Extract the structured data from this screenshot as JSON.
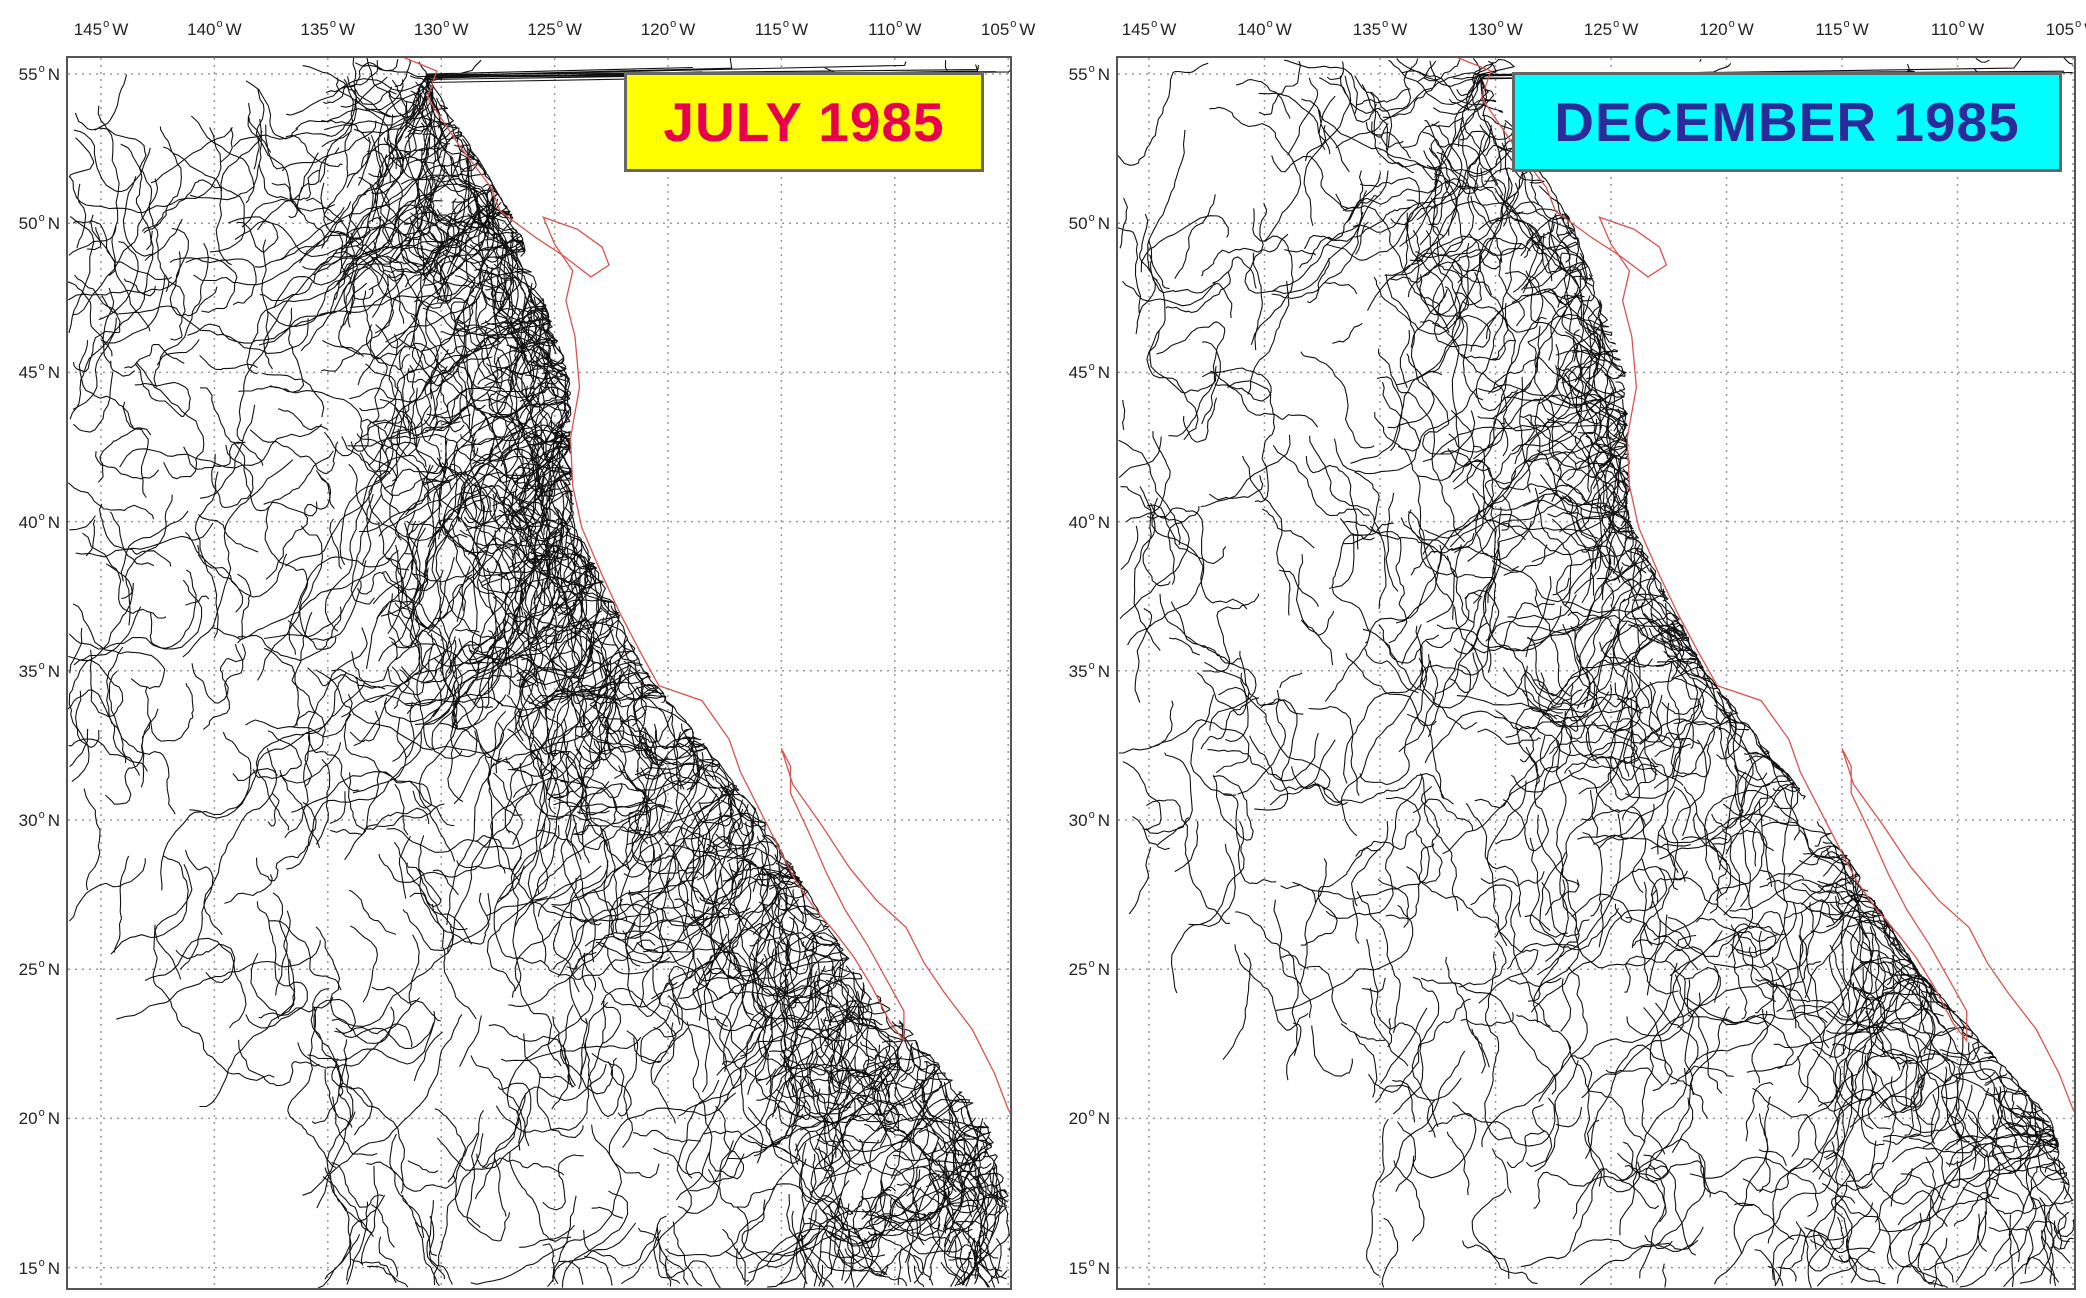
{
  "figure": {
    "description": "Drifter trajectories off the west coast of North America",
    "colors": {
      "trajectories": "#111111",
      "coastline": "#d9534f",
      "grid": "#9a9a9a",
      "frame": "#555555"
    },
    "panels": [
      {
        "id": "july",
        "title": "JULY 1985",
        "title_bg": "#ffff00",
        "title_color": "#e8004f",
        "lon_ticks": [
          "145",
          "140",
          "135",
          "130",
          "125",
          "120",
          "115",
          "110",
          "105"
        ],
        "lon_unit": "W",
        "lat_ticks": [
          "55",
          "50",
          "45",
          "40",
          "35",
          "30",
          "25",
          "20",
          "15"
        ],
        "lat_unit": "N"
      },
      {
        "id": "december",
        "title": "DECEMBER 1985",
        "title_bg": "#00ffff",
        "title_color": "#2a2a9a",
        "lon_ticks": [
          "145",
          "140",
          "135",
          "130",
          "125",
          "120",
          "115",
          "110",
          "105"
        ],
        "lon_unit": "W",
        "lat_ticks": [
          "55",
          "50",
          "45",
          "40",
          "35",
          "30",
          "25",
          "20",
          "15"
        ],
        "lat_unit": "N"
      }
    ],
    "extent": {
      "lon_min": -147,
      "lon_max": -104,
      "lat_min": 14.5,
      "lat_max": 56.5
    }
  }
}
